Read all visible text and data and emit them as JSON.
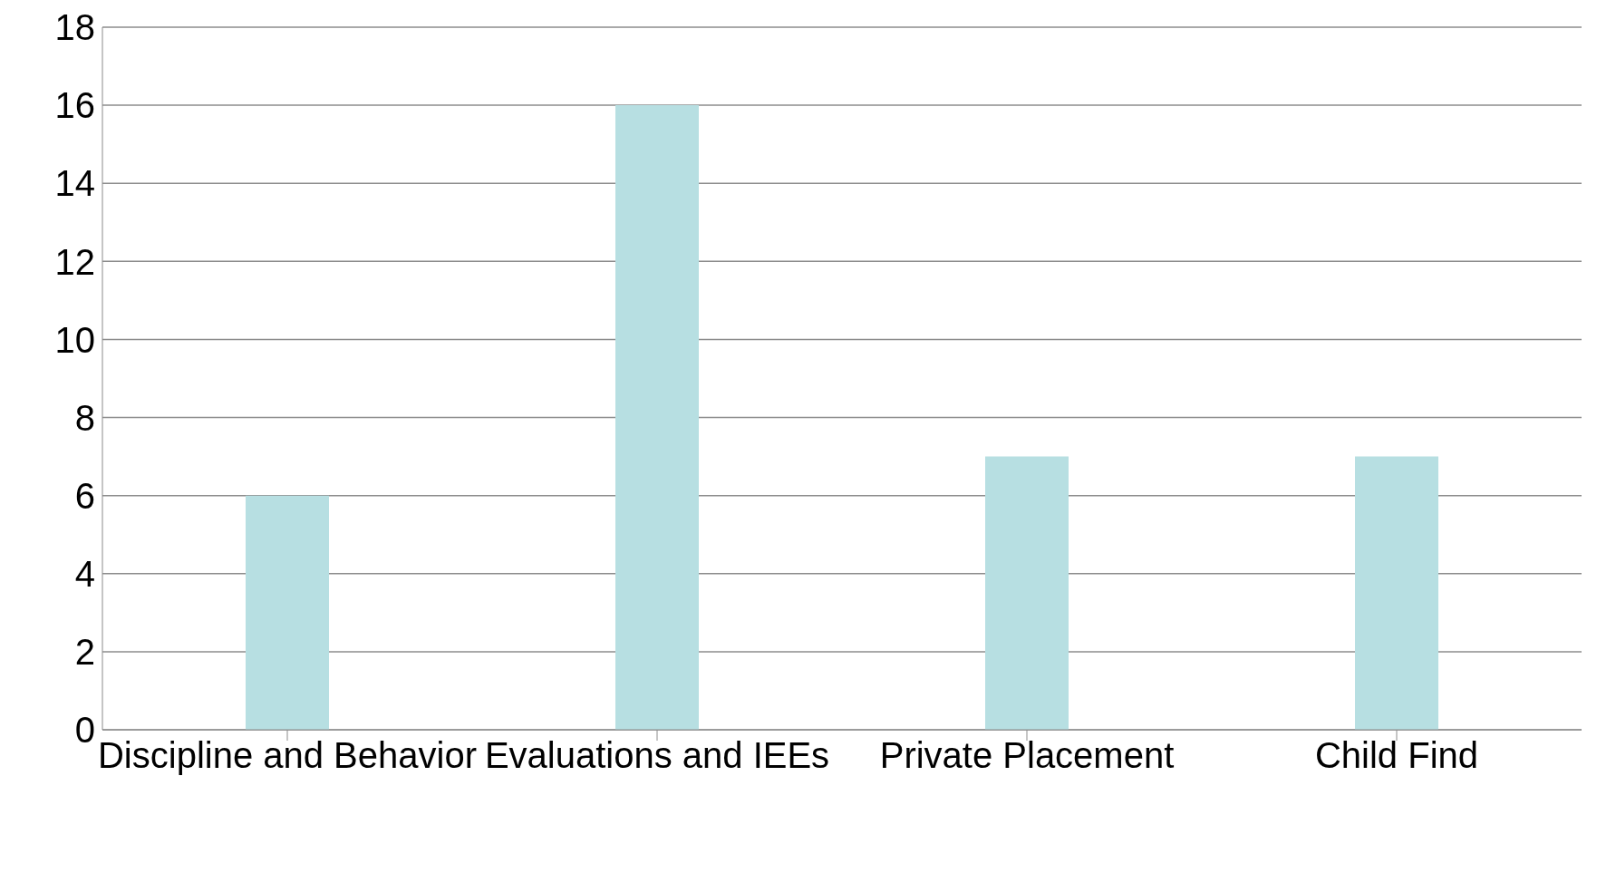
{
  "chart_data": {
    "type": "bar",
    "categories": [
      "Discipline and Behavior",
      "Evaluations and IEEs",
      "Private Placement",
      "Child Find"
    ],
    "values": [
      6,
      16,
      7,
      7
    ],
    "color": "#b7dfe2",
    "ylim": [
      0,
      18
    ],
    "yticks": [
      0,
      2,
      4,
      6,
      8,
      10,
      12,
      14,
      16,
      18
    ],
    "grid": "y"
  }
}
